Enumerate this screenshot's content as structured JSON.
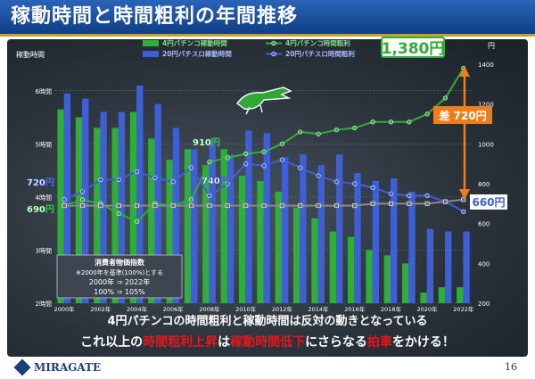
{
  "title": "稼動時間と時間粗利の年間推移",
  "note_box": {
    "heading": "消費者物価指数",
    "line1": "※2000年を基準(100%)とする",
    "line2": "2000年 ⇒ 2022年",
    "line3": "100% ⇒ 105%"
  },
  "caption": {
    "line1": "4円パチンコの時間粗利と稼動時間は反対の動きとなっている",
    "line2_parts": [
      "これ以上の",
      "時間粗利上昇",
      "は",
      "稼動時間低下",
      "にさらなる",
      "拍車",
      "をかける！"
    ]
  },
  "callouts": {
    "big_value": "1,380円",
    "diff": "差 720円",
    "left_top": "720円",
    "left_bottom": "690円",
    "mid_green": "910円",
    "mid_blue": "740円",
    "end_blue": "660円"
  },
  "footer": {
    "logo": "MIRAGATE",
    "page": "16"
  },
  "colors": {
    "green": "#2fae3a",
    "blue": "#3f5fd6",
    "gray": "#8a8a8a",
    "orange": "#f07d1a",
    "red": "#e8161a",
    "header": "#0f3f86"
  },
  "chart_data": {
    "type": "bar",
    "x": [
      2000,
      2001,
      2002,
      2003,
      2004,
      2005,
      2006,
      2007,
      2008,
      2009,
      2010,
      2011,
      2012,
      2013,
      2014,
      2015,
      2016,
      2017,
      2018,
      2019,
      2020,
      2021,
      2022
    ],
    "x_tick_labels": [
      "2000年",
      "2002年",
      "2004年",
      "2006年",
      "2008年",
      "2010年",
      "2012年",
      "2014年",
      "2016年",
      "2018年",
      "2020年",
      "2022年"
    ],
    "ylabel_left": "稼動時間",
    "ylabel_right": "円",
    "ylim_left": [
      2,
      6.5
    ],
    "yticks_left": [
      "2時間",
      "3時間",
      "4時間",
      "5時間",
      "6時間"
    ],
    "ylim_right": [
      200,
      1400
    ],
    "yticks_right": [
      200,
      400,
      600,
      800,
      1000,
      1200,
      1400
    ],
    "bar_series": [
      {
        "name": "4円パチンコ稼動時間",
        "color": "#2fae3a",
        "values": [
          5.65,
          5.5,
          5.3,
          5.3,
          5.6,
          5.1,
          4.7,
          4.9,
          4.6,
          4.9,
          4.4,
          4.3,
          4.1,
          3.8,
          3.6,
          3.35,
          3.25,
          3.0,
          2.9,
          2.75,
          2.2,
          2.3,
          2.3
        ]
      },
      {
        "name": "20円パチスロ稼動時間",
        "color": "#3f5fd6",
        "values": [
          5.95,
          5.85,
          5.6,
          5.6,
          6.1,
          5.75,
          5.3,
          4.9,
          5.1,
          4.8,
          5.25,
          5.2,
          4.75,
          4.8,
          4.6,
          4.8,
          4.45,
          4.3,
          4.35,
          4.1,
          3.4,
          3.35,
          3.35
        ]
      }
    ],
    "line_series": [
      {
        "name": "4円パチンコ時間粗利",
        "color": "#2fae3a",
        "values": [
          690,
          720,
          700,
          650,
          610,
          700,
          690,
          720,
          910,
          930,
          950,
          960,
          1000,
          1060,
          1050,
          1070,
          1080,
          1110,
          1110,
          1110,
          1150,
          1230,
          1380
        ]
      },
      {
        "name": "20円パチスロ時間粗利",
        "color": "#3f5fd6",
        "values": [
          720,
          760,
          820,
          820,
          860,
          830,
          810,
          880,
          740,
          800,
          900,
          890,
          920,
          880,
          840,
          810,
          800,
          780,
          750,
          740,
          740,
          710,
          660
        ]
      },
      {
        "name": "消費者物価指数",
        "color": "#8a8a8a",
        "values": [
          690,
          690,
          690,
          690,
          690,
          690,
          690,
          690,
          690,
          690,
          690,
          690,
          690,
          690,
          690,
          690,
          690,
          700,
          700,
          700,
          700,
          710,
          720
        ]
      }
    ]
  }
}
